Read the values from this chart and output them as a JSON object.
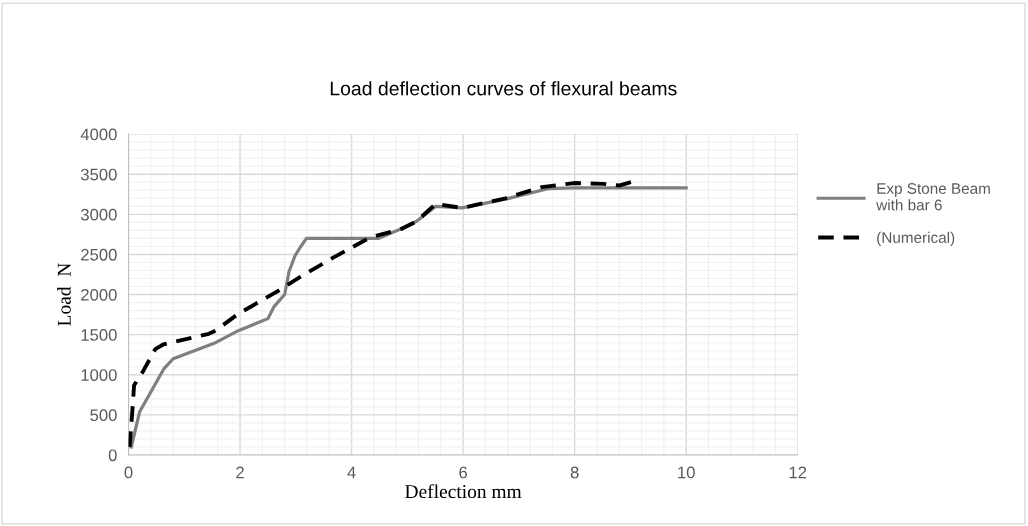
{
  "chart_data": {
    "type": "line",
    "title": "Load deflection curves of flexural beams",
    "xlabel": "Deflection mm",
    "ylabel": "Load  N",
    "xlim": [
      0,
      12
    ],
    "xticks": [
      0,
      2,
      4,
      6,
      8,
      10,
      12
    ],
    "ylim": [
      0,
      4000
    ],
    "yticks": [
      0,
      500,
      1000,
      1500,
      2000,
      2500,
      3000,
      3500,
      4000
    ],
    "grid": true,
    "legend": "right",
    "marker": "none",
    "series": [
      {
        "name": "Exp Stone Beam with bar 6",
        "color": "#7f7f7f",
        "line_style": "solid",
        "x": [
          0.05,
          0.2,
          0.63,
          0.8,
          1.56,
          1.97,
          2.5,
          2.61,
          2.8,
          2.88,
          2.99,
          3.08,
          3.19,
          4.49,
          4.95,
          5.16,
          5.51,
          5.98,
          6.76,
          7.52,
          7.99,
          10.0
        ],
        "values": [
          100,
          540,
          1070,
          1200,
          1400,
          1550,
          1700,
          1850,
          2000,
          2290,
          2490,
          2590,
          2700,
          2700,
          2840,
          2910,
          3100,
          3080,
          3190,
          3320,
          3330,
          3330
        ]
      },
      {
        "name": "(Numerical)",
        "color": "#000000",
        "line_style": "dashed",
        "x": [
          0.02,
          0.07,
          0.1,
          0.25,
          0.48,
          0.63,
          1.44,
          1.56,
          1.97,
          2.67,
          3.08,
          3.67,
          4.25,
          4.43,
          4.9,
          5.16,
          5.51,
          5.98,
          6.76,
          7.41,
          7.99,
          8.52,
          8.81,
          9.05
        ],
        "values": [
          100,
          560,
          870,
          1030,
          1320,
          1380,
          1510,
          1550,
          1760,
          2040,
          2220,
          2460,
          2680,
          2730,
          2820,
          2910,
          3130,
          3080,
          3200,
          3340,
          3390,
          3380,
          3360,
          3410
        ]
      }
    ]
  }
}
